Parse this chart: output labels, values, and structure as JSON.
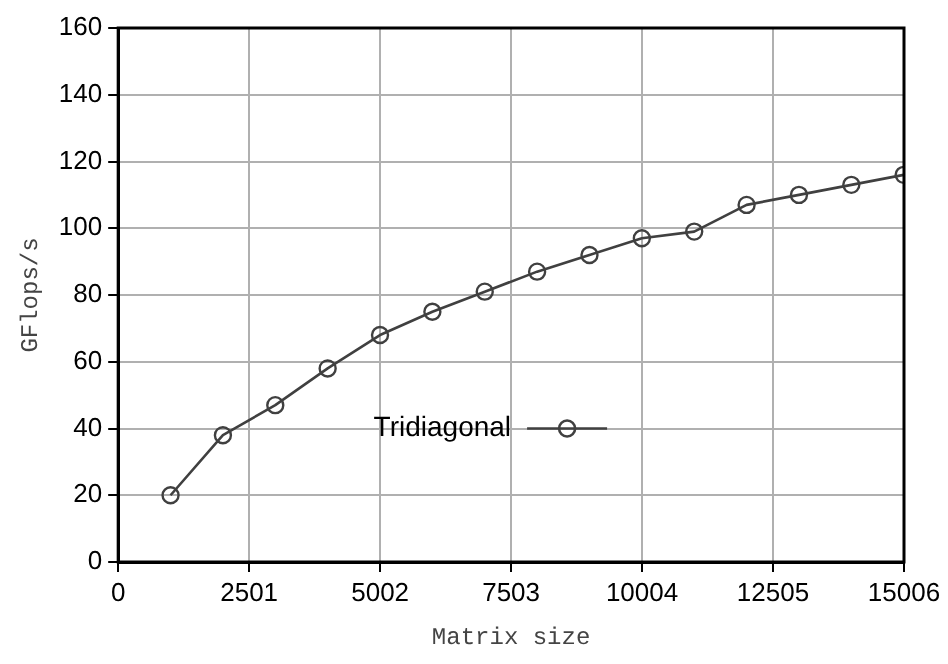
{
  "chart_data": {
    "type": "line",
    "xlabel": "Matrix size",
    "ylabel": "GFlops/s",
    "x": [
      1000,
      2000,
      3000,
      4000,
      5000,
      6000,
      7000,
      8000,
      9000,
      10000,
      11000,
      12000,
      13000,
      14000,
      15000
    ],
    "series": [
      {
        "name": "Tridiagonal",
        "color": "#404040",
        "values": [
          20,
          38,
          47,
          58,
          68,
          75,
          81,
          87,
          92,
          97,
          99,
          107,
          110,
          113,
          116
        ]
      }
    ],
    "xlim": [
      0,
      15006
    ],
    "xticks": [
      0,
      2501,
      5002,
      7503,
      10004,
      12505,
      15006
    ],
    "ylim": [
      0,
      160
    ],
    "yticks": [
      0,
      20,
      40,
      60,
      80,
      100,
      120,
      140,
      160
    ],
    "grid": true,
    "legend": "bottom",
    "marker": "circle",
    "line_style": "solid"
  }
}
